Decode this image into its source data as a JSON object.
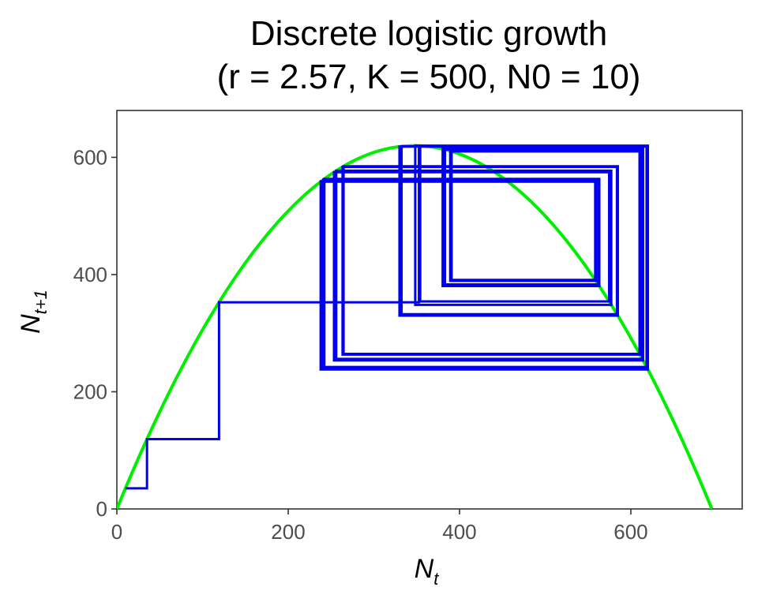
{
  "chart_data": {
    "type": "line",
    "title": "Discrete logistic growth",
    "subtitle": "(r = 2.57, K = 500, N0 = 10)",
    "xlabel": "N",
    "xlabel_sub": "t",
    "ylabel": "N",
    "ylabel_sub": "t+1",
    "xlim": [
      0,
      730
    ],
    "ylim": [
      0,
      680
    ],
    "xticks": [
      "0",
      "200",
      "400",
      "600"
    ],
    "yticks": [
      "0",
      "200",
      "400",
      "600"
    ],
    "grid": false,
    "parameters": {
      "r": 2.57,
      "K": 500,
      "N0": 10
    },
    "series": [
      {
        "role": "logistic map curve",
        "color": "#00ee00",
        "function": "N_next = N + r*N*(1 - N/K)"
      },
      {
        "role": "cobweb trajectory",
        "color": "#0000ee",
        "iterations": 40
      }
    ]
  }
}
